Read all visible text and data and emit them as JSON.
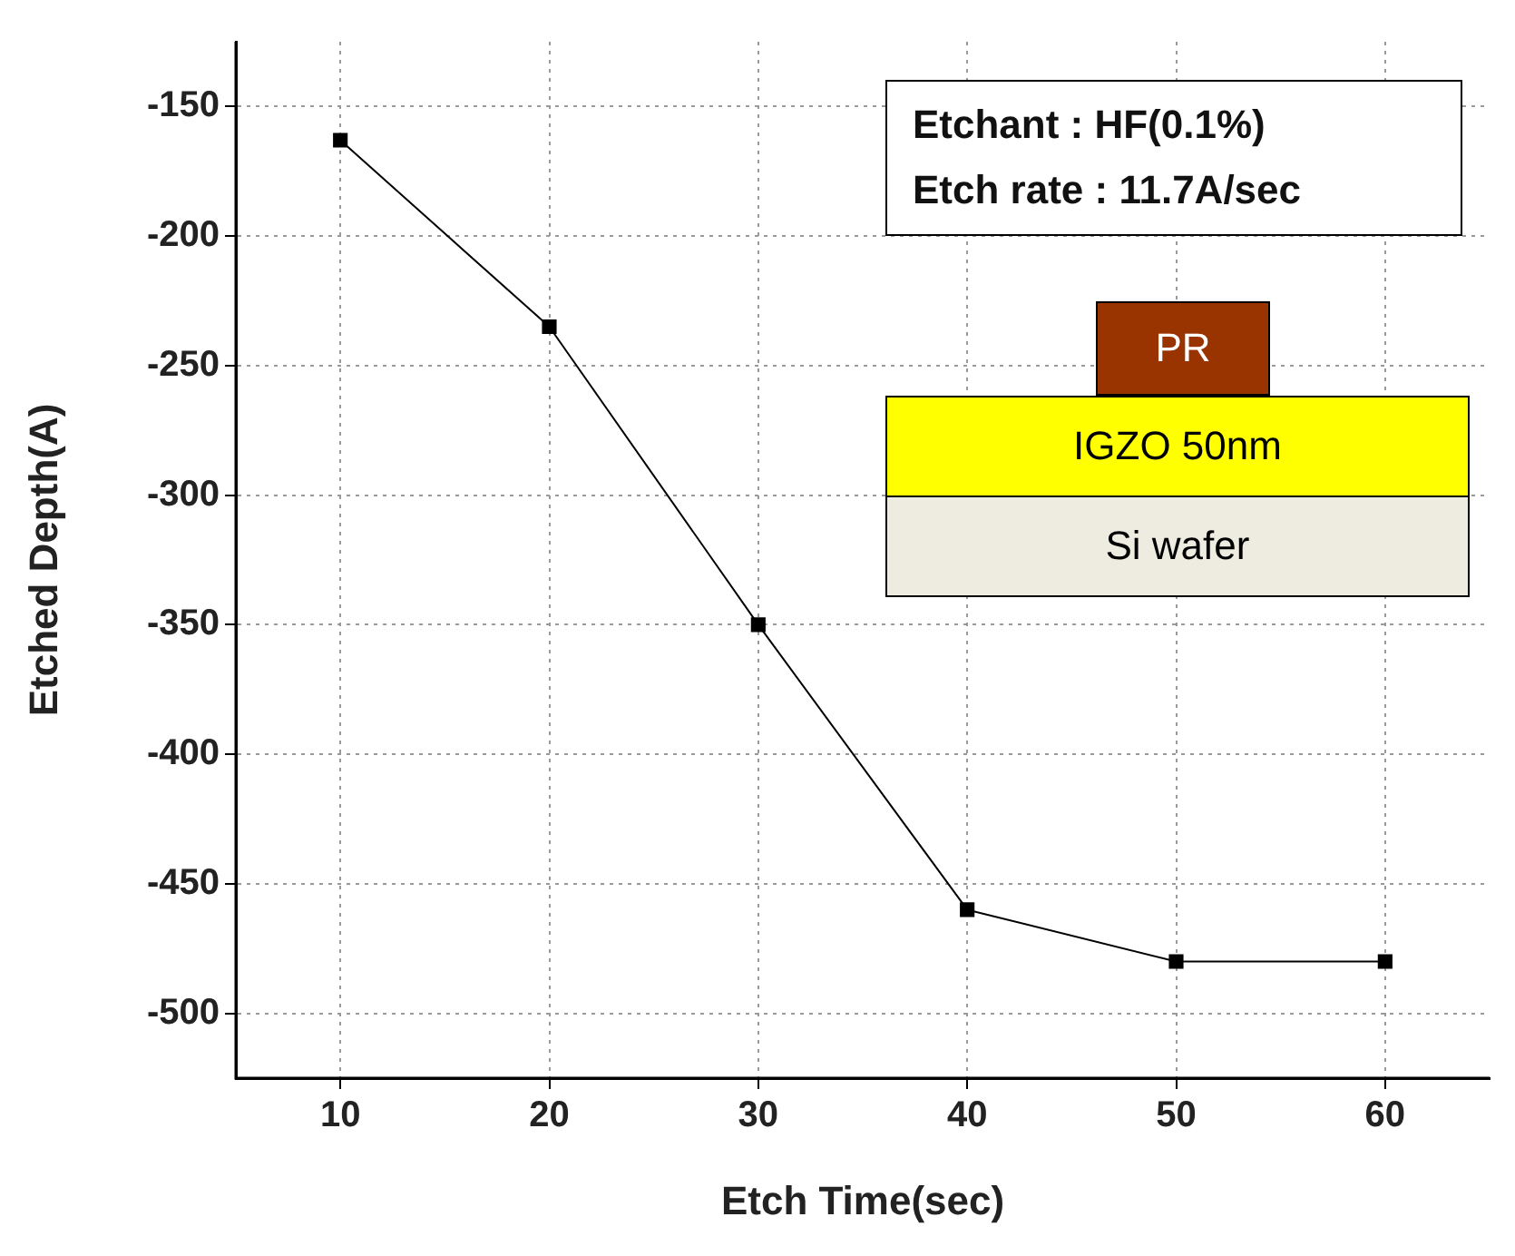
{
  "chart_data": {
    "type": "line",
    "xlabel": "Etch Time(sec)",
    "ylabel": "Etched Depth(A)",
    "x": [
      10,
      20,
      30,
      40,
      50,
      60
    ],
    "series": [
      {
        "color": "#000000",
        "values": [
          -163,
          -235,
          -350,
          -460,
          -480,
          -480
        ]
      }
    ],
    "xlim": [
      5,
      65
    ],
    "xticks": [
      10,
      20,
      30,
      40,
      50,
      60
    ],
    "ylim": [
      -525,
      -125
    ],
    "yticks": [
      -150,
      -200,
      -250,
      -300,
      -350,
      -400,
      -450,
      -500
    ],
    "grid": true,
    "marker": "square",
    "line_style": "solid",
    "legend": false,
    "annotations": [
      "Etchant : HF(0.1%)",
      "Etch rate : 11.7A/sec",
      "PR",
      "IGZO 50nm",
      "Si wafer"
    ]
  }
}
